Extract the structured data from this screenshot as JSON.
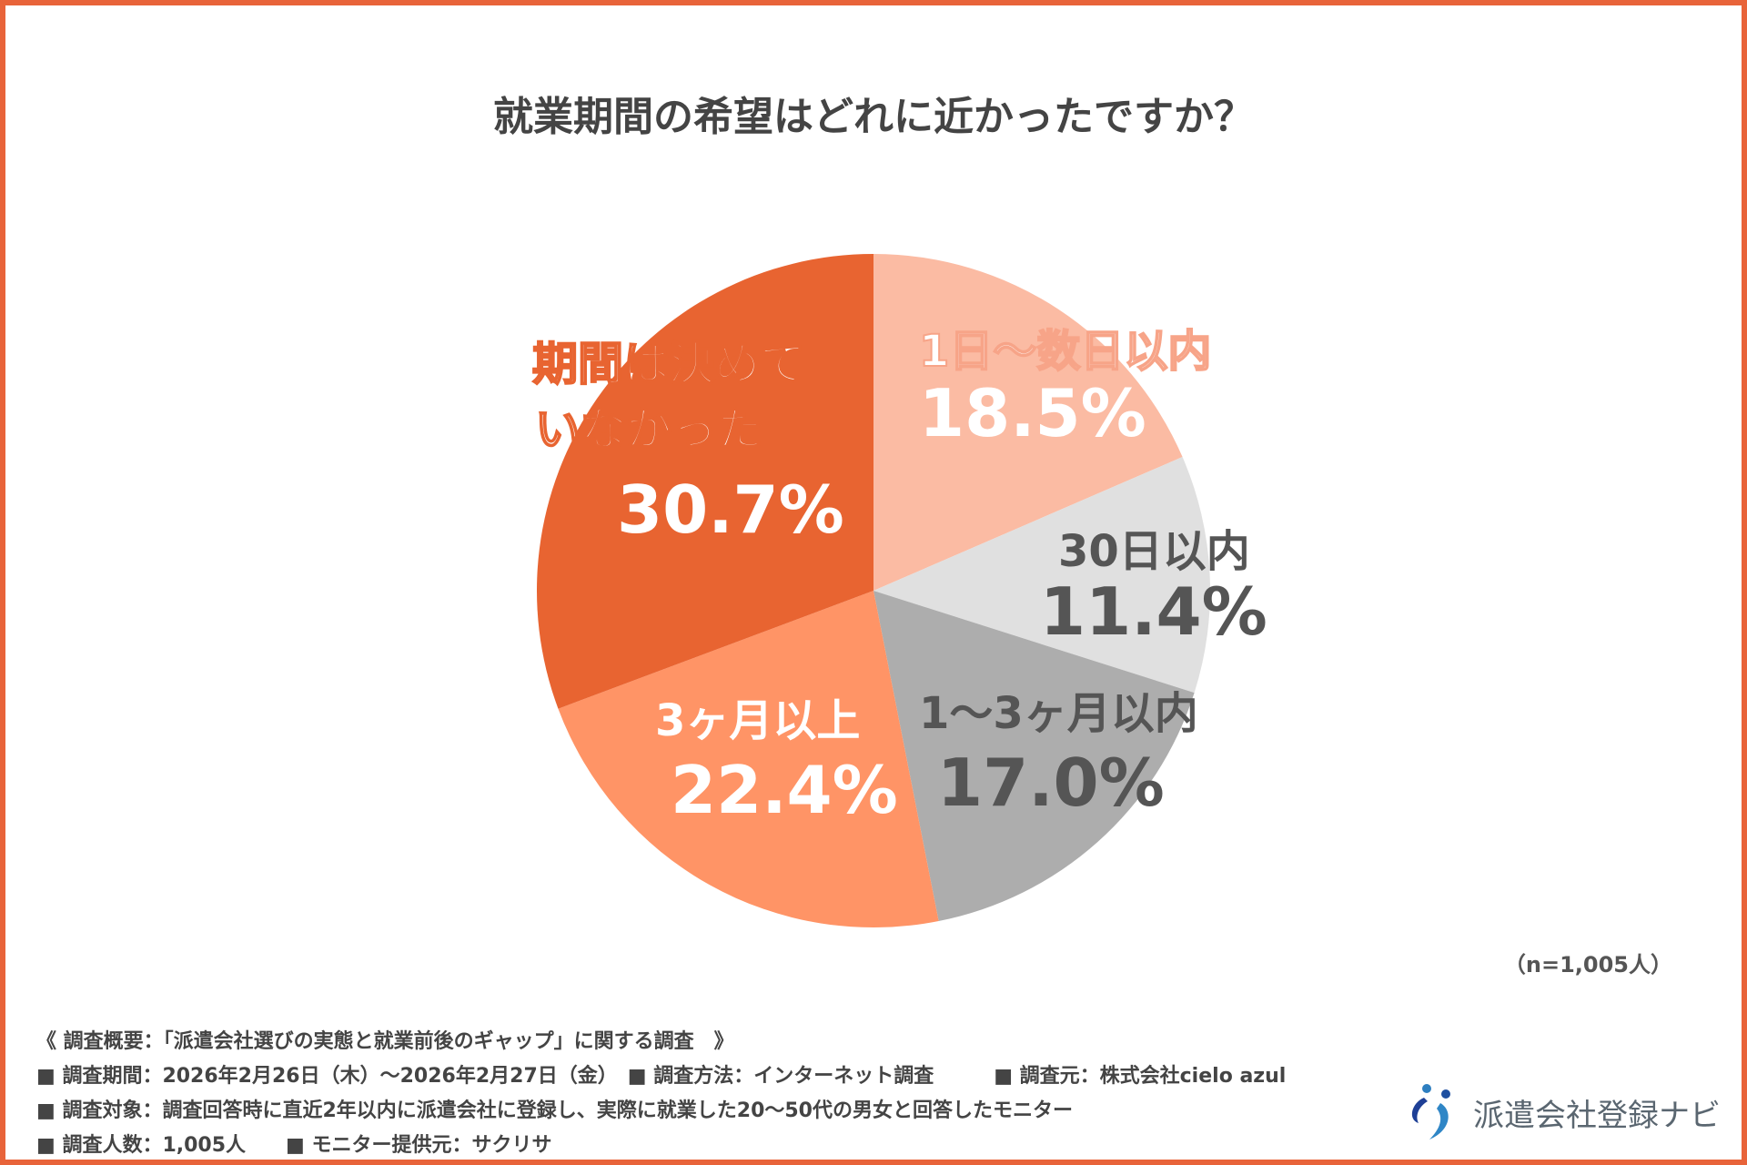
{
  "title": "就業期間の希望はどれに近かったですか？",
  "chart_data": {
    "type": "pie",
    "title": "就業期間の希望はどれに近かったですか？",
    "start": "top",
    "direction": "clockwise",
    "slices": [
      {
        "label": "1日～数日以内",
        "value": 18.5,
        "display": "18.5%",
        "color": "#FBBBA3",
        "text_color": "#ffffff"
      },
      {
        "label": "30日以内",
        "value": 11.4,
        "display": "11.4%",
        "color": "#E0E0E0",
        "text_color": "#555555"
      },
      {
        "label": "1～3ヶ月以内",
        "value": 17.0,
        "display": "17.0%",
        "color": "#ADADAD",
        "text_color": "#555555"
      },
      {
        "label": "3ヶ月以上",
        "value": 22.4,
        "display": "22.4%",
        "color": "#FF9466",
        "text_color": "#ffffff"
      },
      {
        "label_lines": [
          "期間は決めて",
          "いなかった"
        ],
        "value": 30.7,
        "display": "30.7%",
        "color": "#E86431",
        "text_color": "#ffffff"
      }
    ],
    "sample": "（n=1,005人）"
  },
  "notes": [
    "《 調査概要：「派遣会社選びの実態と就業前後のギャップ」に関する調査　》",
    "■ 調査期間：2026年2月26日（木）～2026年2月27日（金）　■ 調査方法：インターネット調査　　　■ 調査元：株式会社cielo azul",
    "■ 調査対象：調査回答時に直近2年以内に派遣会社に登録し、実際に就業した20～50代の男女と回答したモニター",
    "■ 調査人数：1,005人　　■ モニター提供元：サクリサ"
  ],
  "logo": {
    "text": "派遣会社登録ナビ"
  },
  "colors": {
    "border": "#E8643A"
  }
}
